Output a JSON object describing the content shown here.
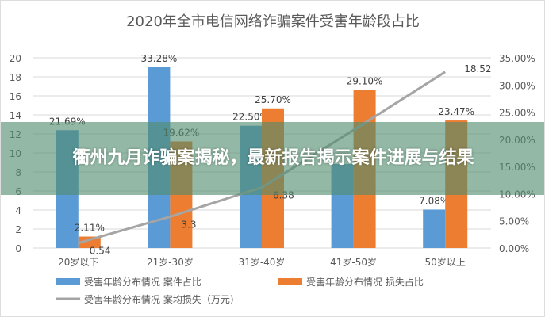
{
  "chart_data": {
    "type": "bar",
    "title": "2020年全市电信网络诈骗案件受害年龄段占比",
    "categories": [
      "20岁以下",
      "21岁-30岁",
      "31岁-40岁",
      "41岁-50岁",
      "50岁以上"
    ],
    "series": [
      {
        "name": "受害年龄分布情况 案件占比",
        "type": "bar",
        "axis": "right",
        "color": "#5b9bd5",
        "values": [
          21.69,
          33.28,
          22.5,
          15.45,
          7.08
        ],
        "labels": [
          "21.69%",
          "33.28%",
          "22.50%",
          "",
          "7.08%"
        ]
      },
      {
        "name": "受害年龄分布情况 损失占比",
        "type": "bar",
        "axis": "right",
        "color": "#ed7d31",
        "values": [
          2.11,
          19.62,
          25.7,
          29.1,
          23.47
        ],
        "labels": [
          "2.11%",
          "19.62%",
          "25.70%",
          "29.10%",
          "23.47%"
        ]
      },
      {
        "name": "受害年龄分布情况 案均损失（万元)",
        "type": "line",
        "axis": "left",
        "color": "#a5a5a5",
        "values": [
          0.54,
          3.3,
          6.38,
          12.4,
          18.52
        ],
        "labels": [
          "0.54",
          "3.3",
          "6.38",
          "",
          "18.52"
        ]
      }
    ],
    "left_axis": {
      "ylim": [
        0,
        20
      ],
      "ticks": [
        "0",
        "2",
        "4",
        "6",
        "8",
        "10",
        "12",
        "14",
        "16",
        "18",
        "20"
      ]
    },
    "right_axis": {
      "ylim": [
        0,
        35
      ],
      "ticks": [
        "0.00%",
        "5.00%",
        "10.00%",
        "15.00%",
        "20.00%",
        "25.00%",
        "30.00%",
        "35.00%"
      ]
    },
    "grid": true,
    "legend": "bottom"
  },
  "banner": {
    "headline": "衢州九月诈骗案揭秘，最新报告揭示案件进展与结果"
  }
}
